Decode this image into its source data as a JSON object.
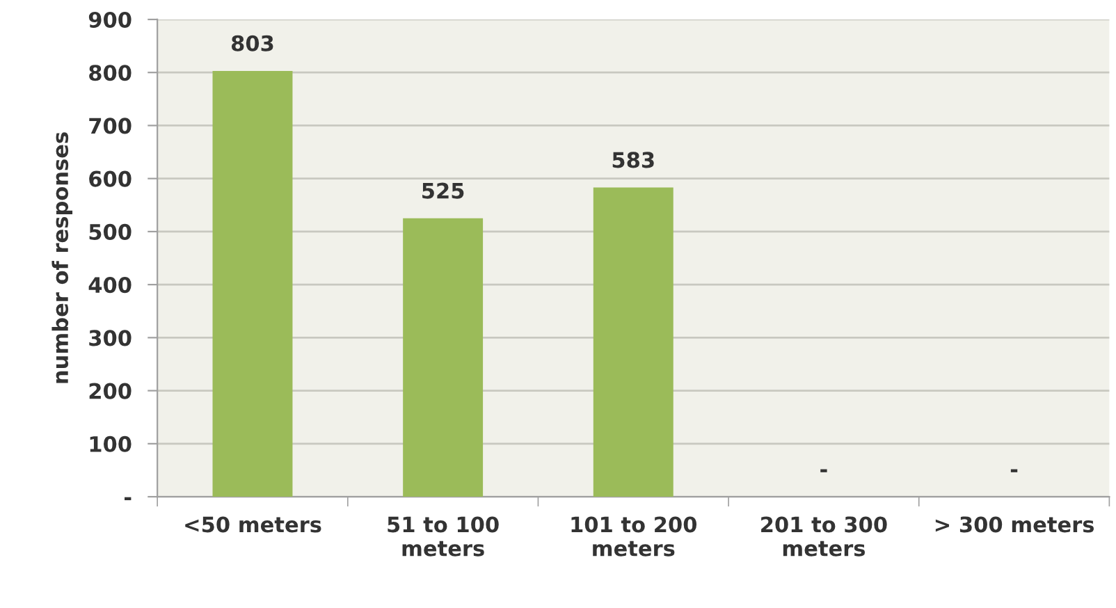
{
  "chart_data": {
    "type": "bar",
    "ylabel": "number of responses",
    "categories": [
      "<50 meters",
      "51 to 100 meters",
      "101 to 200 meters",
      "201 to 300 meters",
      "> 300 meters"
    ],
    "values": [
      803,
      525,
      583,
      0,
      0
    ],
    "color": "#9bbb59",
    "value_labels": [
      "803",
      "525",
      "583",
      "-",
      "-"
    ],
    "ylim": [
      0,
      900
    ],
    "yticks": [
      {
        "value": 0,
        "label": "-"
      },
      100,
      200,
      300,
      400,
      500,
      600,
      700,
      800,
      900
    ],
    "grid": "y",
    "legend": false
  }
}
